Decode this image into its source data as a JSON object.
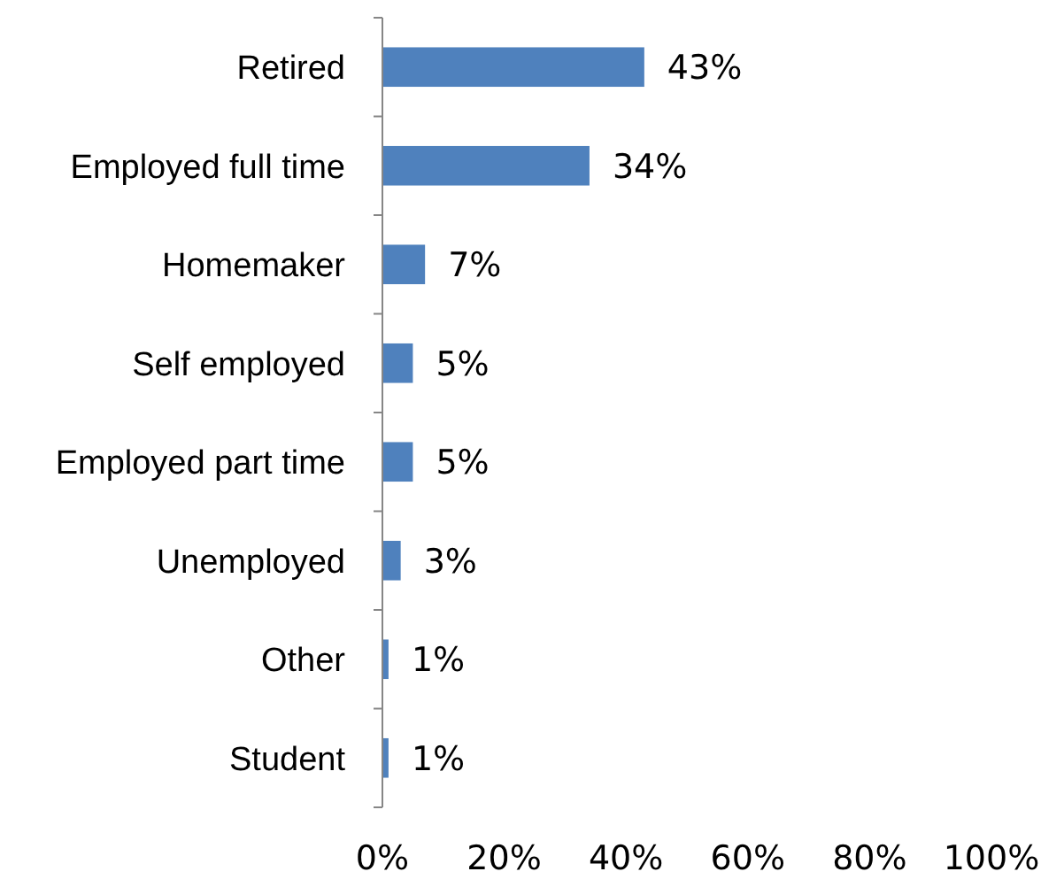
{
  "chart_data": {
    "type": "bar",
    "orientation": "horizontal",
    "categories": [
      "Retired",
      "Employed full time",
      "Homemaker",
      "Self employed",
      "Employed part time",
      "Unemployed",
      "Other",
      "Student"
    ],
    "values": [
      43,
      34,
      7,
      5,
      5,
      3,
      1,
      1
    ],
    "value_labels": [
      "43%",
      "34%",
      "7%",
      "5%",
      "5%",
      "3%",
      "1%",
      "1%"
    ],
    "color": "#4f81bd",
    "xlim": [
      0,
      100
    ],
    "xticks": [
      {
        "value": 0,
        "label": "0%"
      },
      {
        "value": 20,
        "label": "20%"
      },
      {
        "value": 40,
        "label": "40%"
      },
      {
        "value": 60,
        "label": "60%"
      },
      {
        "value": 80,
        "label": "80%"
      },
      {
        "value": 100,
        "label": "100%"
      }
    ],
    "grid": false
  }
}
